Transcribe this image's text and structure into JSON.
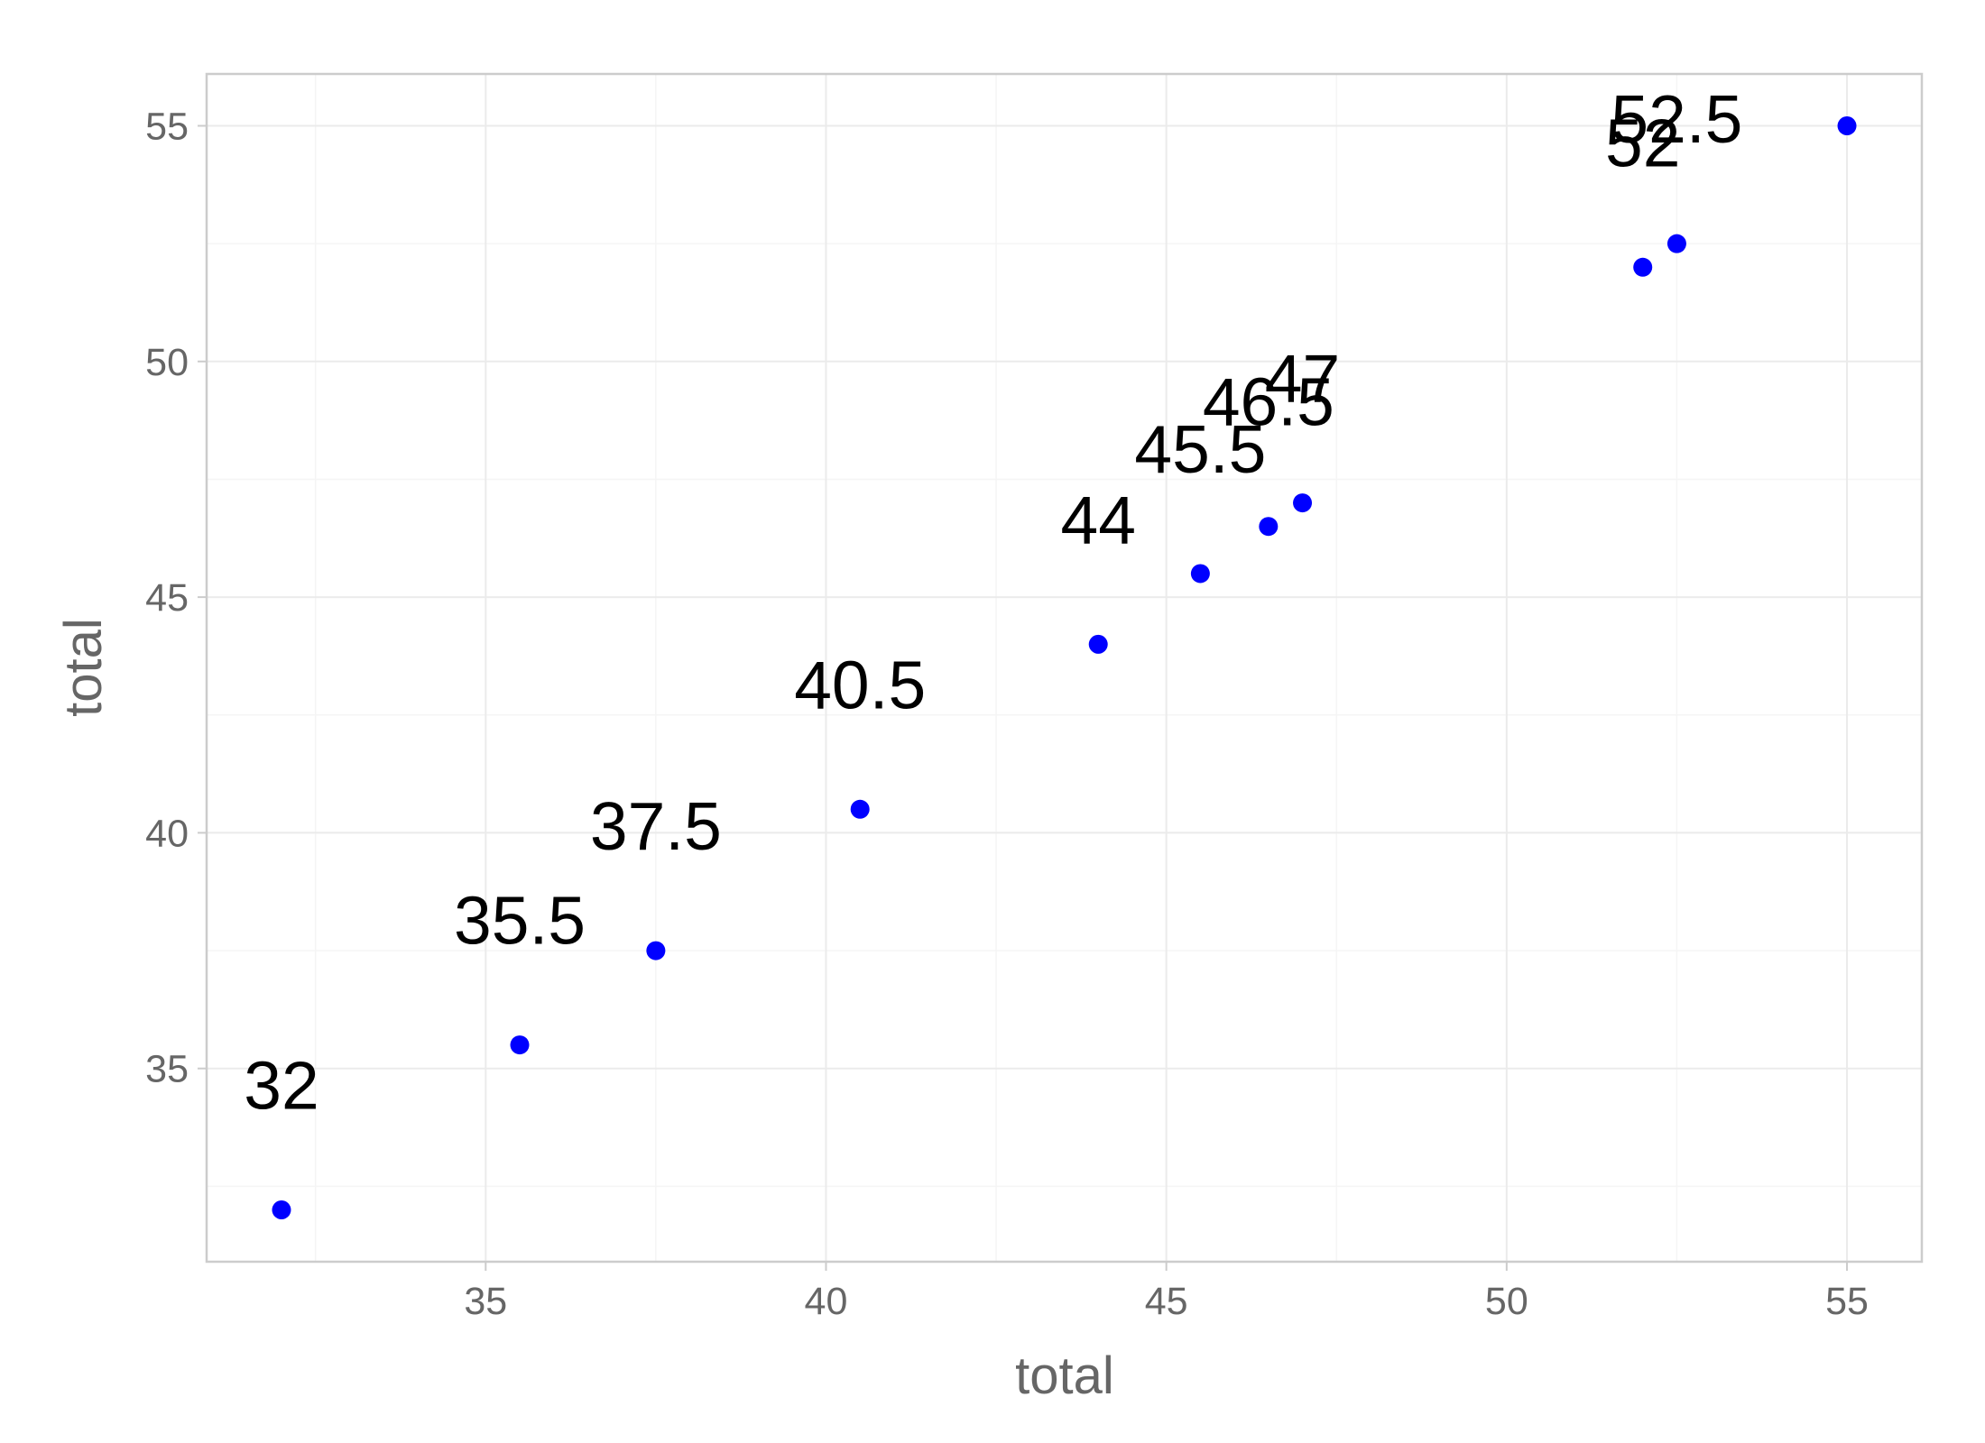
{
  "chart_data": {
    "type": "scatter",
    "title": "",
    "xlabel": "total",
    "ylabel": "total",
    "xlim": [
      30.9,
      56.1
    ],
    "ylim": [
      30.9,
      56.1
    ],
    "x_ticks": [
      35,
      40,
      45,
      50,
      55
    ],
    "y_ticks": [
      35,
      40,
      45,
      50,
      55
    ],
    "grid": true,
    "point_color": "#0000ff",
    "label_color": "#000000",
    "series": [
      {
        "points": [
          {
            "x": 32,
            "y": 32,
            "label": "32"
          },
          {
            "x": 35.5,
            "y": 35.5,
            "label": "35.5"
          },
          {
            "x": 37.5,
            "y": 37.5,
            "label": "37.5"
          },
          {
            "x": 40.5,
            "y": 40.5,
            "label": "40.5"
          },
          {
            "x": 44,
            "y": 44,
            "label": "44"
          },
          {
            "x": 45.5,
            "y": 45.5,
            "label": "45.5"
          },
          {
            "x": 46.5,
            "y": 46.5,
            "label": "46.5"
          },
          {
            "x": 47,
            "y": 47,
            "label": "47"
          },
          {
            "x": 52,
            "y": 52,
            "label": "52"
          },
          {
            "x": 52.5,
            "y": 52.5,
            "label": "52.5"
          },
          {
            "x": 55,
            "y": 55,
            "label": ""
          }
        ]
      }
    ]
  }
}
